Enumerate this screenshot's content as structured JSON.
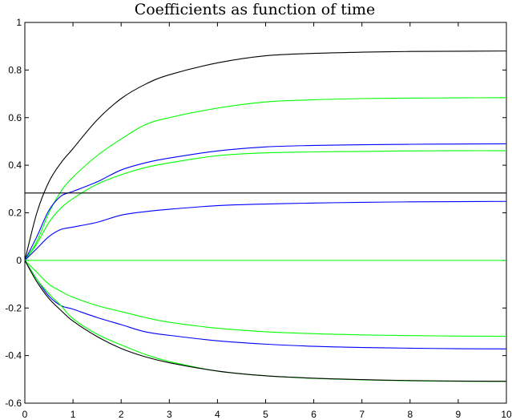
{
  "chart_data": {
    "type": "line",
    "title": "Coefficients as function of time",
    "xlabel": "",
    "ylabel": "",
    "xlim": [
      0,
      10
    ],
    "ylim": [
      -0.6,
      1
    ],
    "grid": false,
    "legend": "none",
    "x_ticks": [
      0,
      1,
      2,
      3,
      4,
      5,
      6,
      7,
      8,
      9,
      10
    ],
    "x_tick_labels": [
      "0",
      "1",
      "2",
      "3",
      "4",
      "5",
      "6",
      "7",
      "8",
      "9",
      "10"
    ],
    "y_ticks": [
      -0.6,
      -0.4,
      -0.2,
      0,
      0.2,
      0.4,
      0.6,
      0.8,
      1
    ],
    "y_tick_labels": [
      "-0.6",
      "-0.4",
      "-0.2",
      "0",
      "0.2",
      "0.4",
      "0.6",
      "0.8",
      "1"
    ],
    "x": [
      0,
      0.25,
      0.5,
      0.75,
      1,
      1.5,
      2,
      2.5,
      3,
      4,
      5,
      6,
      7,
      8,
      9,
      10
    ],
    "series": [
      {
        "color": "#000000",
        "values": [
          0,
          0.2,
          0.33,
          0.41,
          0.47,
          0.59,
          0.68,
          0.74,
          0.78,
          0.83,
          0.86,
          0.87,
          0.875,
          0.878,
          0.879,
          0.88
        ]
      },
      {
        "color": "#00ff00",
        "values": [
          0,
          0.08,
          0.2,
          0.29,
          0.35,
          0.44,
          0.51,
          0.57,
          0.6,
          0.64,
          0.666,
          0.675,
          0.68,
          0.682,
          0.683,
          0.684
        ]
      },
      {
        "color": "#0000ff",
        "values": [
          0,
          0.1,
          0.21,
          0.27,
          0.29,
          0.33,
          0.38,
          0.41,
          0.43,
          0.46,
          0.477,
          0.483,
          0.486,
          0.488,
          0.489,
          0.49
        ]
      },
      {
        "color": "#00ff00",
        "values": [
          0,
          0.07,
          0.16,
          0.22,
          0.26,
          0.32,
          0.36,
          0.39,
          0.41,
          0.44,
          0.452,
          0.456,
          0.458,
          0.46,
          0.461,
          0.461
        ]
      },
      {
        "color": "#000000",
        "values": [
          0.283,
          0.283,
          0.283,
          0.283,
          0.283,
          0.283,
          0.283,
          0.283,
          0.283,
          0.283,
          0.283,
          0.283,
          0.283,
          0.283,
          0.283,
          0.283
        ]
      },
      {
        "color": "#0000ff",
        "values": [
          0,
          0.05,
          0.1,
          0.13,
          0.14,
          0.16,
          0.19,
          0.205,
          0.215,
          0.23,
          0.237,
          0.241,
          0.244,
          0.246,
          0.247,
          0.248
        ]
      },
      {
        "color": "#00ff00",
        "values": [
          0,
          0,
          0,
          0,
          0,
          0,
          0,
          0,
          0,
          0,
          0,
          0,
          0,
          0,
          0,
          0
        ]
      },
      {
        "color": "#00ff00",
        "values": [
          0,
          -0.05,
          -0.1,
          -0.13,
          -0.155,
          -0.19,
          -0.215,
          -0.24,
          -0.26,
          -0.285,
          -0.3,
          -0.308,
          -0.313,
          -0.316,
          -0.318,
          -0.319
        ]
      },
      {
        "color": "#0000ff",
        "values": [
          0,
          -0.08,
          -0.15,
          -0.19,
          -0.205,
          -0.24,
          -0.27,
          -0.3,
          -0.315,
          -0.338,
          -0.352,
          -0.361,
          -0.366,
          -0.369,
          -0.371,
          -0.372
        ]
      },
      {
        "color": "#00ff00",
        "values": [
          0,
          -0.08,
          -0.14,
          -0.19,
          -0.245,
          -0.31,
          -0.355,
          -0.395,
          -0.425,
          -0.465,
          -0.485,
          -0.496,
          -0.502,
          -0.506,
          -0.508,
          -0.509
        ]
      },
      {
        "color": "#000000",
        "values": [
          0,
          -0.09,
          -0.16,
          -0.21,
          -0.255,
          -0.32,
          -0.37,
          -0.405,
          -0.43,
          -0.465,
          -0.485,
          -0.495,
          -0.501,
          -0.505,
          -0.507,
          -0.508
        ]
      }
    ]
  }
}
